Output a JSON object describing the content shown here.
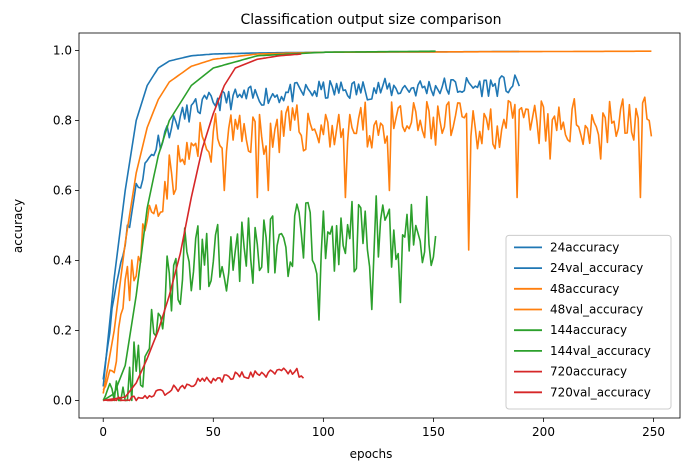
{
  "chart_data": {
    "type": "line",
    "title": "Classification output size comparison",
    "xlabel": "epochs",
    "ylabel": "accuracy",
    "xlim": [
      -11,
      262
    ],
    "ylim": [
      -0.05,
      1.05
    ],
    "xticks": [
      0,
      50,
      100,
      150,
      200,
      250
    ],
    "yticks": [
      0.0,
      0.2,
      0.4,
      0.6,
      0.8,
      1.0
    ],
    "xtick_labels": [
      "0",
      "50",
      "100",
      "150",
      "200",
      "250"
    ],
    "ytick_labels": [
      "0.0",
      "0.2",
      "0.4",
      "0.6",
      "0.8",
      "1.0"
    ],
    "grid": false,
    "legend_position": "lower-right",
    "series": [
      {
        "name": "24accuracy",
        "color": "#1f77b4",
        "kind": "train",
        "x_end": 189,
        "anchors": [
          [
            0,
            0.04
          ],
          [
            5,
            0.35
          ],
          [
            10,
            0.6
          ],
          [
            15,
            0.8
          ],
          [
            20,
            0.9
          ],
          [
            25,
            0.95
          ],
          [
            30,
            0.97
          ],
          [
            40,
            0.985
          ],
          [
            50,
            0.99
          ],
          [
            70,
            0.993
          ],
          [
            100,
            0.995
          ],
          [
            189,
            0.997
          ]
        ]
      },
      {
        "name": "24val_accuracy",
        "color": "#1f77b4",
        "kind": "val",
        "x_end": 189,
        "amp": 0.03,
        "seed": 11,
        "anchors": [
          [
            0,
            0.06
          ],
          [
            5,
            0.3
          ],
          [
            10,
            0.46
          ],
          [
            15,
            0.6
          ],
          [
            20,
            0.68
          ],
          [
            25,
            0.74
          ],
          [
            30,
            0.78
          ],
          [
            40,
            0.83
          ],
          [
            50,
            0.855
          ],
          [
            70,
            0.87
          ],
          [
            100,
            0.885
          ],
          [
            150,
            0.895
          ],
          [
            189,
            0.9
          ]
        ]
      },
      {
        "name": "48accuracy",
        "color": "#ff7f0e",
        "kind": "train",
        "x_end": 249,
        "anchors": [
          [
            0,
            0.02
          ],
          [
            5,
            0.2
          ],
          [
            10,
            0.45
          ],
          [
            15,
            0.65
          ],
          [
            20,
            0.78
          ],
          [
            25,
            0.86
          ],
          [
            30,
            0.91
          ],
          [
            40,
            0.955
          ],
          [
            50,
            0.975
          ],
          [
            70,
            0.99
          ],
          [
            100,
            0.995
          ],
          [
            249,
            0.998
          ]
        ]
      },
      {
        "name": "48val_accuracy",
        "color": "#ff7f0e",
        "kind": "val",
        "x_end": 249,
        "amp": 0.07,
        "seed": 23,
        "anchors": [
          [
            0,
            0.03
          ],
          [
            5,
            0.12
          ],
          [
            10,
            0.3
          ],
          [
            15,
            0.4
          ],
          [
            20,
            0.5
          ],
          [
            25,
            0.58
          ],
          [
            30,
            0.64
          ],
          [
            40,
            0.71
          ],
          [
            50,
            0.75
          ],
          [
            70,
            0.77
          ],
          [
            100,
            0.78
          ],
          [
            150,
            0.785
          ],
          [
            200,
            0.79
          ],
          [
            249,
            0.8
          ]
        ],
        "dips": [
          [
            55,
            0.6
          ],
          [
            70,
            0.58
          ],
          [
            75,
            0.6
          ],
          [
            110,
            0.58
          ],
          [
            130,
            0.6
          ],
          [
            166,
            0.43
          ],
          [
            188,
            0.58
          ],
          [
            203,
            0.69
          ],
          [
            226,
            0.69
          ],
          [
            244,
            0.58
          ]
        ]
      },
      {
        "name": "144accuracy",
        "color": "#2ca02c",
        "kind": "train",
        "x_end": 151,
        "anchors": [
          [
            0,
            0.0
          ],
          [
            5,
            0.02
          ],
          [
            10,
            0.1
          ],
          [
            15,
            0.3
          ],
          [
            20,
            0.55
          ],
          [
            25,
            0.7
          ],
          [
            30,
            0.8
          ],
          [
            40,
            0.9
          ],
          [
            50,
            0.95
          ],
          [
            70,
            0.985
          ],
          [
            100,
            0.995
          ],
          [
            151,
            0.998
          ]
        ]
      },
      {
        "name": "144val_accuracy",
        "color": "#2ca02c",
        "kind": "val",
        "x_end": 151,
        "amp": 0.12,
        "seed": 37,
        "anchors": [
          [
            0,
            0.0
          ],
          [
            5,
            0.01
          ],
          [
            10,
            0.02
          ],
          [
            15,
            0.06
          ],
          [
            20,
            0.15
          ],
          [
            25,
            0.25
          ],
          [
            30,
            0.32
          ],
          [
            40,
            0.4
          ],
          [
            50,
            0.43
          ],
          [
            70,
            0.44
          ],
          [
            100,
            0.45
          ],
          [
            130,
            0.47
          ],
          [
            151,
            0.49
          ]
        ],
        "dips": [
          [
            98,
            0.23
          ],
          [
            122,
            0.26
          ],
          [
            135,
            0.28
          ],
          [
            151,
            0.47
          ]
        ]
      },
      {
        "name": "720accuracy",
        "color": "#d62728",
        "kind": "train",
        "x_end": 90,
        "anchors": [
          [
            0,
            0.0
          ],
          [
            10,
            0.01
          ],
          [
            15,
            0.05
          ],
          [
            20,
            0.12
          ],
          [
            25,
            0.2
          ],
          [
            30,
            0.3
          ],
          [
            35,
            0.42
          ],
          [
            40,
            0.58
          ],
          [
            45,
            0.72
          ],
          [
            50,
            0.82
          ],
          [
            55,
            0.9
          ],
          [
            60,
            0.95
          ],
          [
            70,
            0.975
          ],
          [
            80,
            0.985
          ],
          [
            90,
            0.99
          ]
        ]
      },
      {
        "name": "720val_accuracy",
        "color": "#d62728",
        "kind": "val",
        "x_end": 91,
        "amp": 0.012,
        "seed": 53,
        "anchors": [
          [
            0,
            0.0
          ],
          [
            10,
            0.0
          ],
          [
            15,
            0.005
          ],
          [
            20,
            0.015
          ],
          [
            25,
            0.02
          ],
          [
            30,
            0.03
          ],
          [
            40,
            0.05
          ],
          [
            50,
            0.06
          ],
          [
            60,
            0.07
          ],
          [
            70,
            0.075
          ],
          [
            80,
            0.08
          ],
          [
            85,
            0.09
          ],
          [
            91,
            0.07
          ]
        ]
      }
    ]
  }
}
